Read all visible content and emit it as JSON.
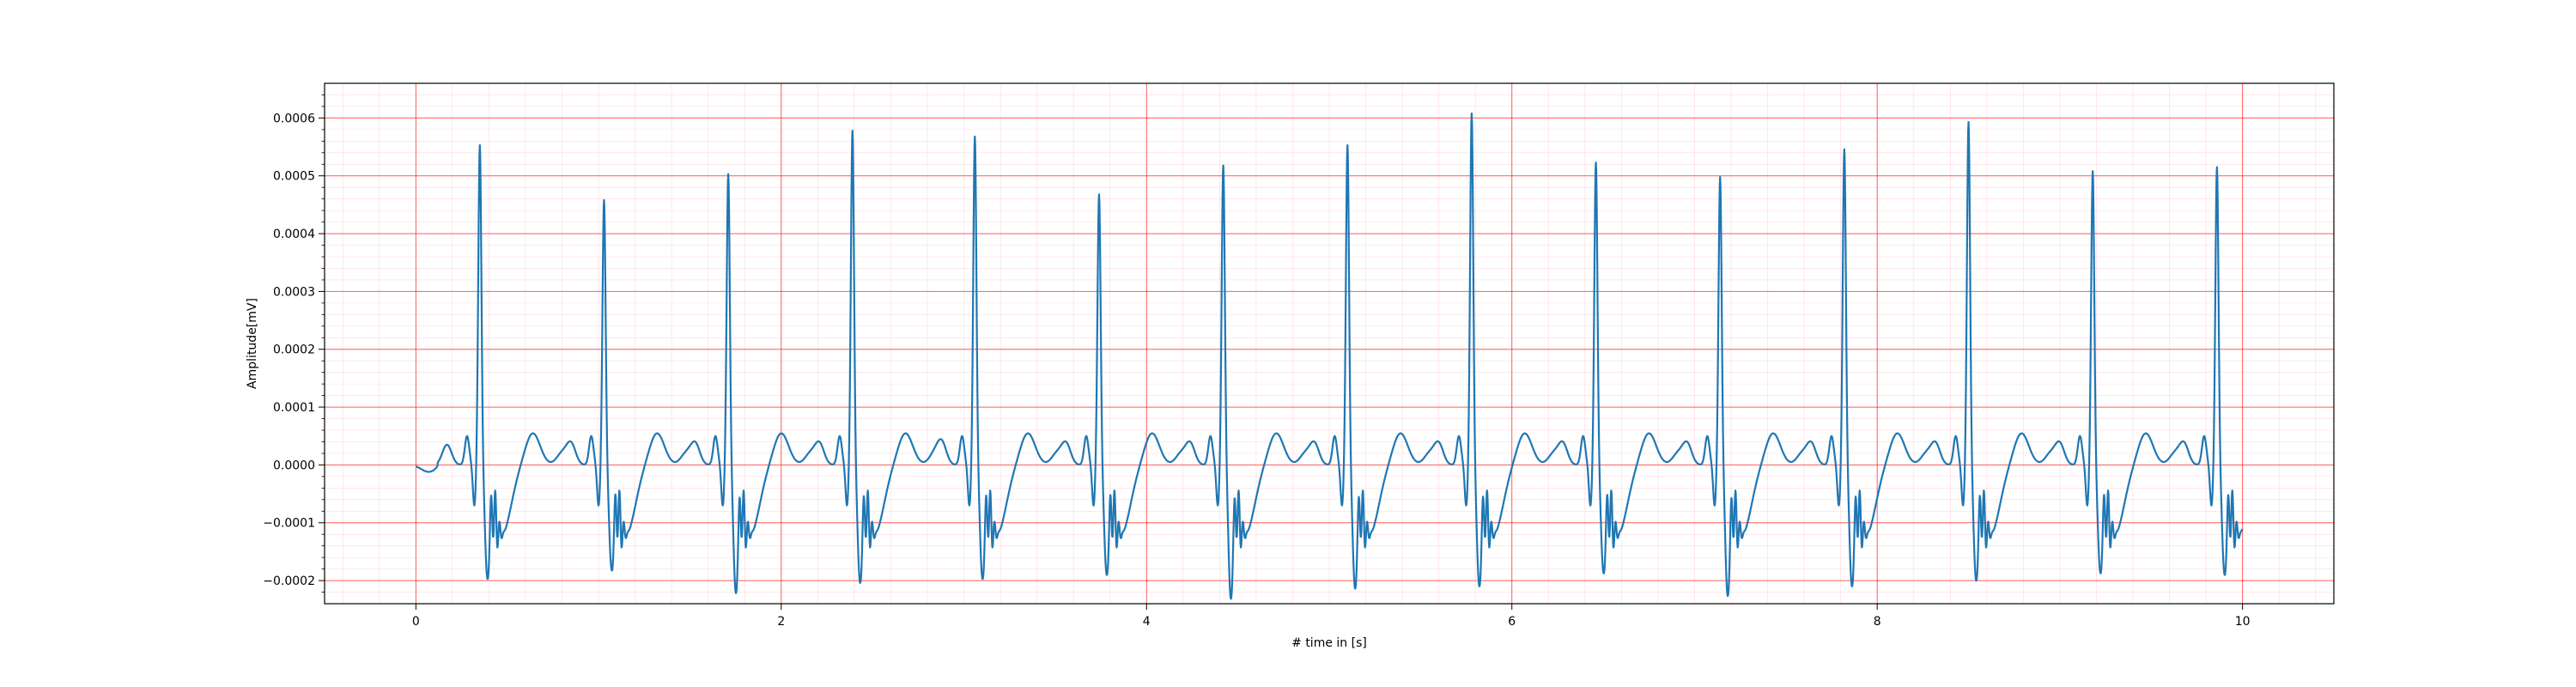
{
  "chart_data": {
    "type": "line",
    "title": "",
    "xlabel": "# time in [s]",
    "ylabel": "Amplitude[mV]",
    "xlim": [
      -0.5,
      10.5
    ],
    "ylim": [
      -0.00024,
      0.00066
    ],
    "xticks": [
      0,
      2,
      4,
      6,
      8,
      10
    ],
    "xtick_labels": [
      "0",
      "2",
      "4",
      "6",
      "8",
      "10"
    ],
    "yticks": [
      -0.0002,
      -0.0001,
      0.0,
      0.0001,
      0.0002,
      0.0003,
      0.0004,
      0.0005,
      0.0006
    ],
    "ytick_labels": [
      "−0.0002",
      "−0.0001",
      "0.0000",
      "0.0001",
      "0.0002",
      "0.0003",
      "0.0004",
      "0.0005",
      "0.0006"
    ],
    "grid": {
      "major": true,
      "minor": true,
      "major_color": "#ff0000",
      "minor_color": "#ffc0cb"
    },
    "line_color": "#1f77b4",
    "background": "#ffffff",
    "series": [
      {
        "name": "",
        "beats": [
          {
            "t": 0.35,
            "r": 0.00056,
            "s": -0.000165
          },
          {
            "t": 1.03,
            "r": 0.000465,
            "s": -0.00015
          },
          {
            "t": 1.71,
            "r": 0.00051,
            "s": -0.00019
          },
          {
            "t": 2.39,
            "r": 0.000585,
            "s": -0.000172
          },
          {
            "t": 3.06,
            "r": 0.000575,
            "s": -0.000165
          },
          {
            "t": 3.74,
            "r": 0.000475,
            "s": -0.000158
          },
          {
            "t": 4.42,
            "r": 0.000525,
            "s": -0.0002
          },
          {
            "t": 5.1,
            "r": 0.00056,
            "s": -0.000182
          },
          {
            "t": 5.78,
            "r": 0.000615,
            "s": -0.000178
          },
          {
            "t": 6.46,
            "r": 0.00053,
            "s": -0.000155
          },
          {
            "t": 7.14,
            "r": 0.000505,
            "s": -0.000195
          },
          {
            "t": 7.82,
            "r": 0.000553,
            "s": -0.000178
          },
          {
            "t": 8.5,
            "r": 0.0006,
            "s": -0.000168
          },
          {
            "t": 9.18,
            "r": 0.000515,
            "s": -0.000155
          },
          {
            "t": 9.86,
            "r": 0.000522,
            "s": -0.000158
          }
        ],
        "x_end": 10.0
      }
    ]
  }
}
